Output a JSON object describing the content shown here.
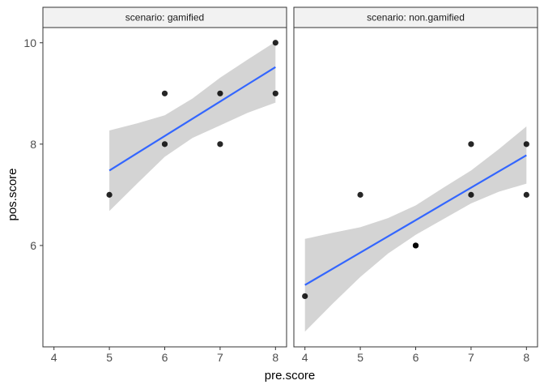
{
  "chart_data": {
    "type": "scatter",
    "xlabel": "pre.score",
    "ylabel": "pos.score",
    "xlim": [
      3.8,
      8.2
    ],
    "ylim": [
      4.0,
      10.3
    ],
    "x_ticks": [
      4,
      5,
      6,
      7,
      8
    ],
    "y_ticks": [
      6,
      8,
      10
    ],
    "grid": false,
    "legend": "none",
    "colors": {
      "point": "#000000",
      "fit_line": "#3366ff",
      "ribbon": "#d4d4d4",
      "strip_fill": "#f2f2f2",
      "panel_border": "#333333"
    },
    "panels": [
      {
        "strip": "scenario: gamified",
        "points": [
          [
            5,
            7
          ],
          [
            6,
            9
          ],
          [
            6,
            8
          ],
          [
            7,
            9
          ],
          [
            7,
            8
          ],
          [
            8,
            10
          ],
          [
            8,
            9
          ]
        ],
        "fit": {
          "x": [
            5.0,
            5.5,
            6.0,
            6.5,
            7.0,
            7.5,
            8.0
          ],
          "y": [
            7.48,
            7.82,
            8.16,
            8.5,
            8.84,
            9.18,
            9.52
          ],
          "lower": [
            6.68,
            7.22,
            7.75,
            8.12,
            8.37,
            8.62,
            8.82
          ],
          "upper": [
            8.27,
            8.41,
            8.57,
            8.9,
            9.31,
            9.67,
            10.02
          ]
        }
      },
      {
        "strip": "scenario: non.gamified",
        "points": [
          [
            4,
            5
          ],
          [
            5,
            7
          ],
          [
            6,
            6
          ],
          [
            6,
            6
          ],
          [
            7,
            8
          ],
          [
            7,
            7
          ],
          [
            8,
            8
          ],
          [
            8,
            7
          ]
        ],
        "fit": {
          "x": [
            4.0,
            4.5,
            5.0,
            5.5,
            6.0,
            6.5,
            7.0,
            7.5,
            8.0
          ],
          "y": [
            5.22,
            5.54,
            5.86,
            6.18,
            6.5,
            6.82,
            7.14,
            7.46,
            7.78
          ],
          "lower": [
            4.3,
            4.85,
            5.38,
            5.84,
            6.21,
            6.52,
            6.83,
            7.06,
            7.22
          ],
          "upper": [
            6.13,
            6.25,
            6.36,
            6.54,
            6.79,
            7.14,
            7.48,
            7.9,
            8.35
          ]
        }
      }
    ]
  }
}
